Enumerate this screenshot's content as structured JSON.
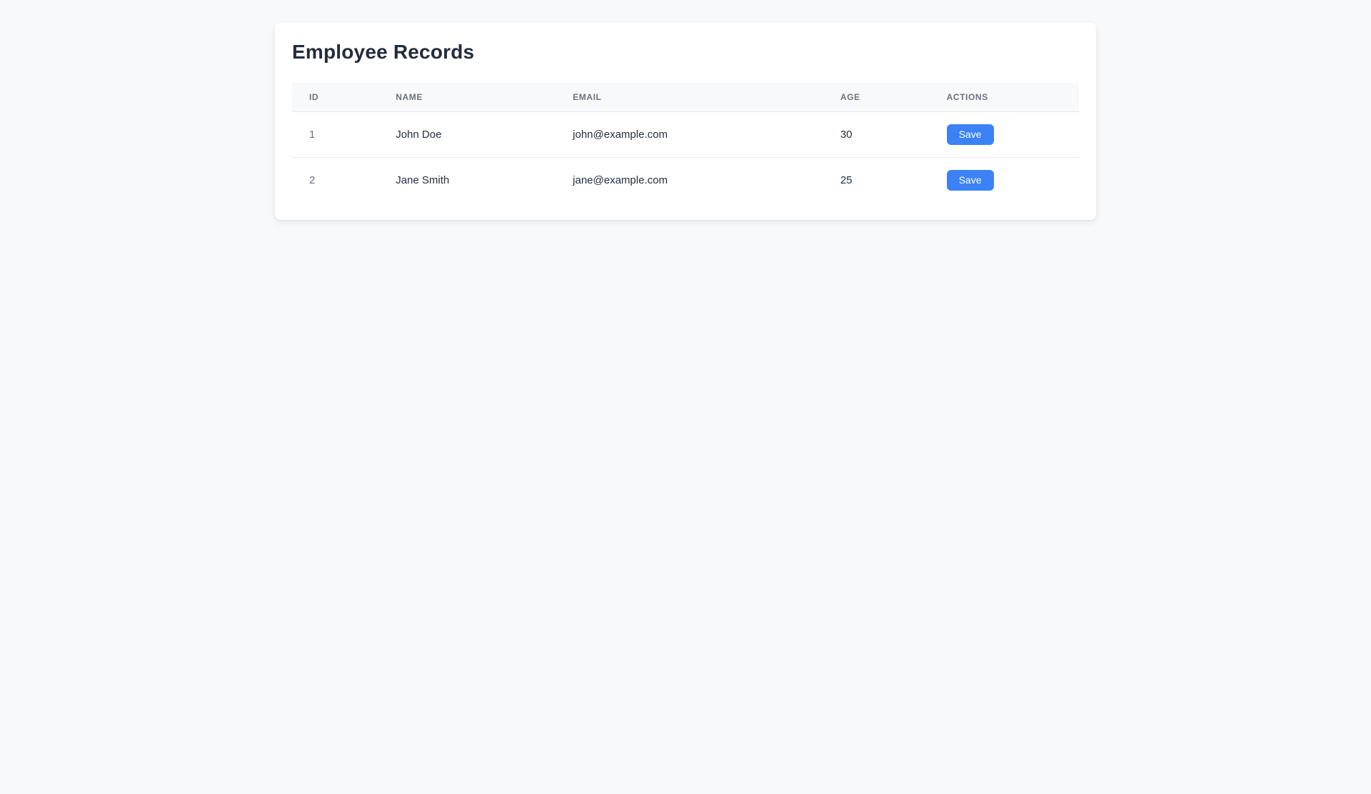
{
  "colors": {
    "accent": "#3b82f6",
    "page_background": "#f8f9fb",
    "card_background": "#ffffff",
    "title_text": "#222c3c",
    "header_text": "#6b7280"
  },
  "card": {
    "title": "Employee Records"
  },
  "table": {
    "columns": [
      {
        "key": "id",
        "label": "ID"
      },
      {
        "key": "name",
        "label": "NAME"
      },
      {
        "key": "email",
        "label": "EMAIL"
      },
      {
        "key": "age",
        "label": "AGE"
      },
      {
        "key": "actions",
        "label": "ACTIONS"
      }
    ],
    "rows": [
      {
        "id": "1",
        "name": "John Doe",
        "email": "john@example.com",
        "age": "30",
        "action_label": "Save"
      },
      {
        "id": "2",
        "name": "Jane Smith",
        "email": "jane@example.com",
        "age": "25",
        "action_label": "Save"
      }
    ]
  }
}
